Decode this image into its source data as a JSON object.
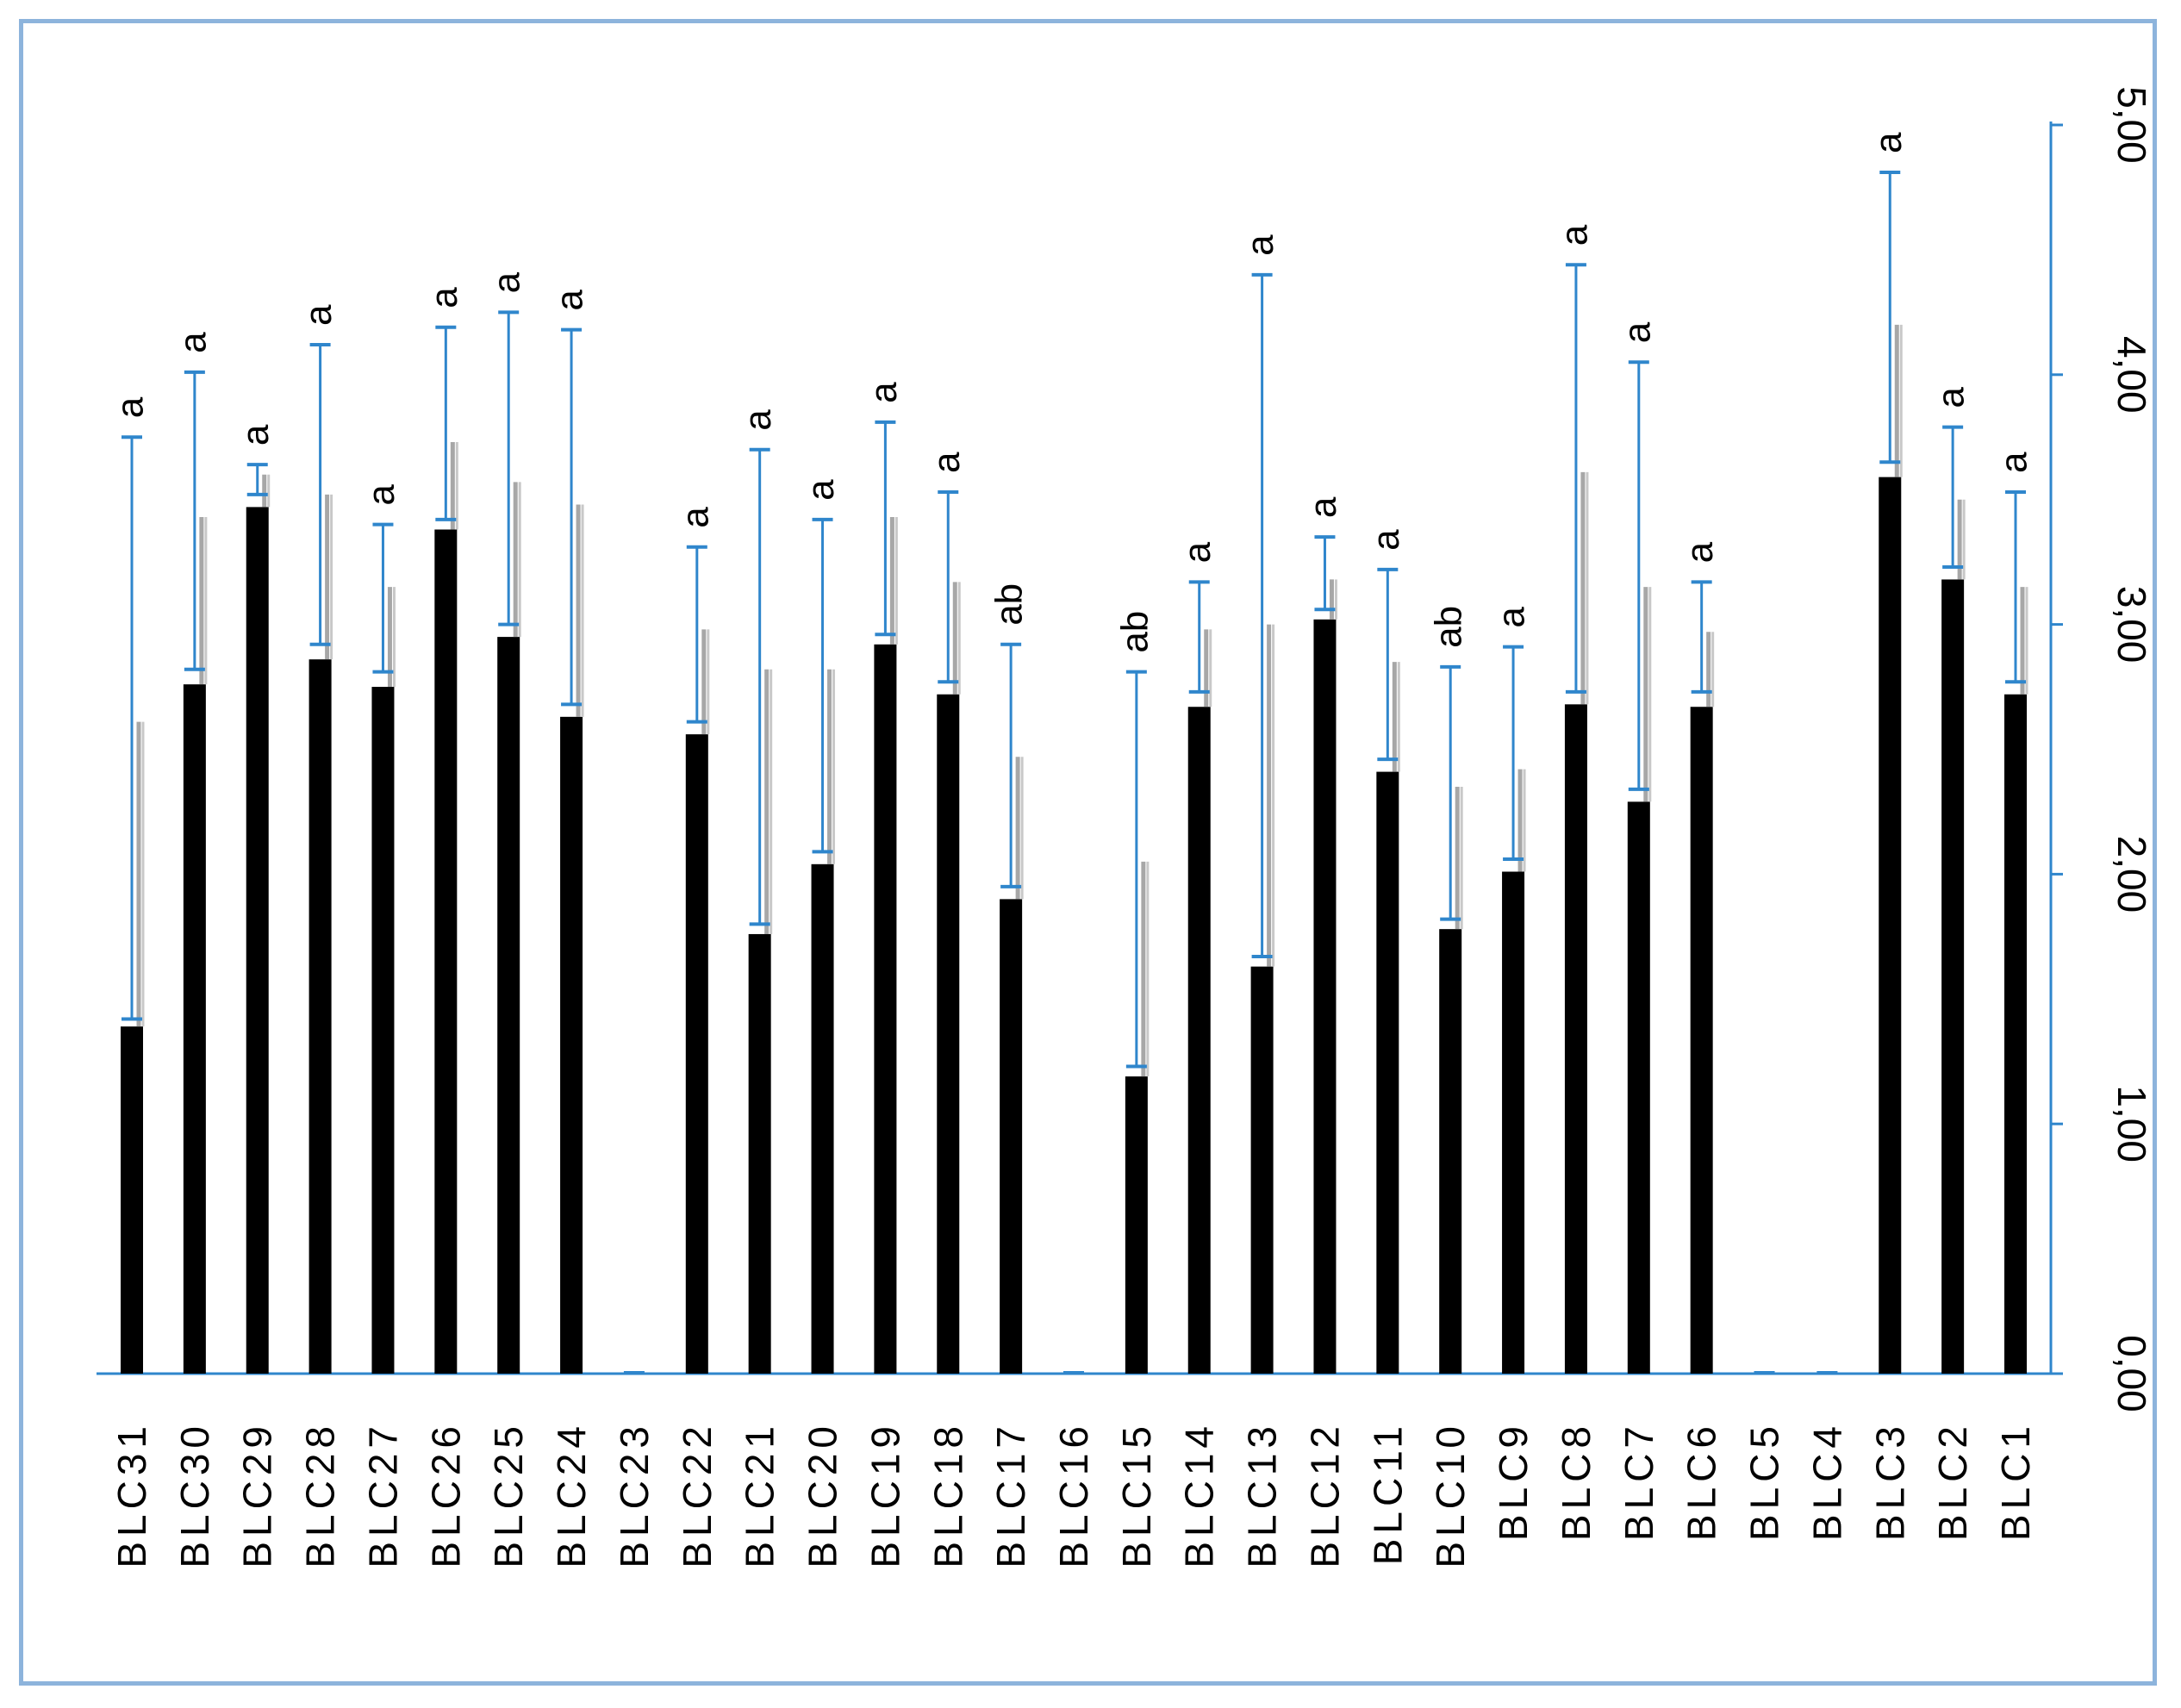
{
  "chart_data": {
    "type": "bar",
    "orientation": "vertical-bars-rotated-axes",
    "categories": [
      "BLC31",
      "BLC30",
      "BLC29",
      "BLC28",
      "BLC27",
      "BLC26",
      "BLC25",
      "BLC24",
      "BLC23",
      "BLC22",
      "BLC21",
      "BLC20",
      "BLC19",
      "BLC18",
      "BLC17",
      "BLC16",
      "BLC15",
      "BLC14",
      "BLC13",
      "BLC12",
      "BLC11",
      "BLC10",
      "BLC9",
      "BLC8",
      "BLC7",
      "BLC6",
      "BLC5",
      "BLC4",
      "BLC3",
      "BLC2",
      "BLC1"
    ],
    "values": [
      1.39,
      2.76,
      3.47,
      2.86,
      2.75,
      3.38,
      2.95,
      2.63,
      0,
      2.56,
      1.76,
      2.04,
      2.92,
      2.72,
      1.9,
      0,
      1.19,
      2.67,
      1.63,
      3.02,
      2.41,
      1.78,
      2.01,
      2.68,
      2.29,
      2.67,
      0,
      0,
      3.59,
      3.18,
      2.72
    ],
    "error_upper": [
      3.75,
      4.01,
      3.64,
      4.12,
      3.4,
      4.19,
      4.25,
      4.18,
      null,
      3.31,
      3.7,
      3.42,
      3.81,
      3.53,
      2.92,
      null,
      2.81,
      3.17,
      4.4,
      3.35,
      3.22,
      2.83,
      2.91,
      4.44,
      4.05,
      3.17,
      null,
      null,
      4.81,
      3.79,
      3.53
    ],
    "error_lower": [
      1.42,
      2.82,
      3.52,
      2.92,
      2.81,
      3.42,
      3.0,
      2.68,
      null,
      2.61,
      1.8,
      2.09,
      2.96,
      2.77,
      1.95,
      null,
      1.23,
      2.73,
      1.67,
      3.06,
      2.46,
      1.82,
      2.06,
      2.73,
      2.34,
      2.73,
      null,
      null,
      3.65,
      3.23,
      2.77
    ],
    "sd_upper": [
      2.61,
      3.43,
      3.6,
      3.52,
      3.15,
      3.73,
      3.57,
      3.48,
      null,
      2.98,
      2.82,
      2.82,
      3.43,
      3.17,
      2.47,
      null,
      2.05,
      2.98,
      3.0,
      3.18,
      2.85,
      2.35,
      2.42,
      3.61,
      3.15,
      2.97,
      null,
      null,
      4.2,
      3.5,
      3.15
    ],
    "letters": [
      "a",
      "a",
      "a",
      "a",
      "a",
      "a",
      "a",
      "a",
      "",
      "a",
      "a",
      "a",
      "a",
      "a",
      "ab",
      "",
      "ab",
      "a",
      "a",
      "a",
      "a",
      "ab",
      "a",
      "a",
      "a",
      "a",
      "",
      "",
      "a",
      "a",
      "a"
    ],
    "y_ticks": [
      "0,00",
      "1,00",
      "2,00",
      "3,00",
      "4,00",
      "5,00"
    ],
    "ylim": [
      0,
      5
    ],
    "title": "",
    "xlabel": "",
    "ylabel": "",
    "grid": false,
    "legend": "none",
    "colors": {
      "bar": "#000000",
      "error_bar": "#2f86cc",
      "sd_bar": "#8a8a8a",
      "axis": "#2f86cc",
      "frame": "#8db4dc"
    }
  }
}
